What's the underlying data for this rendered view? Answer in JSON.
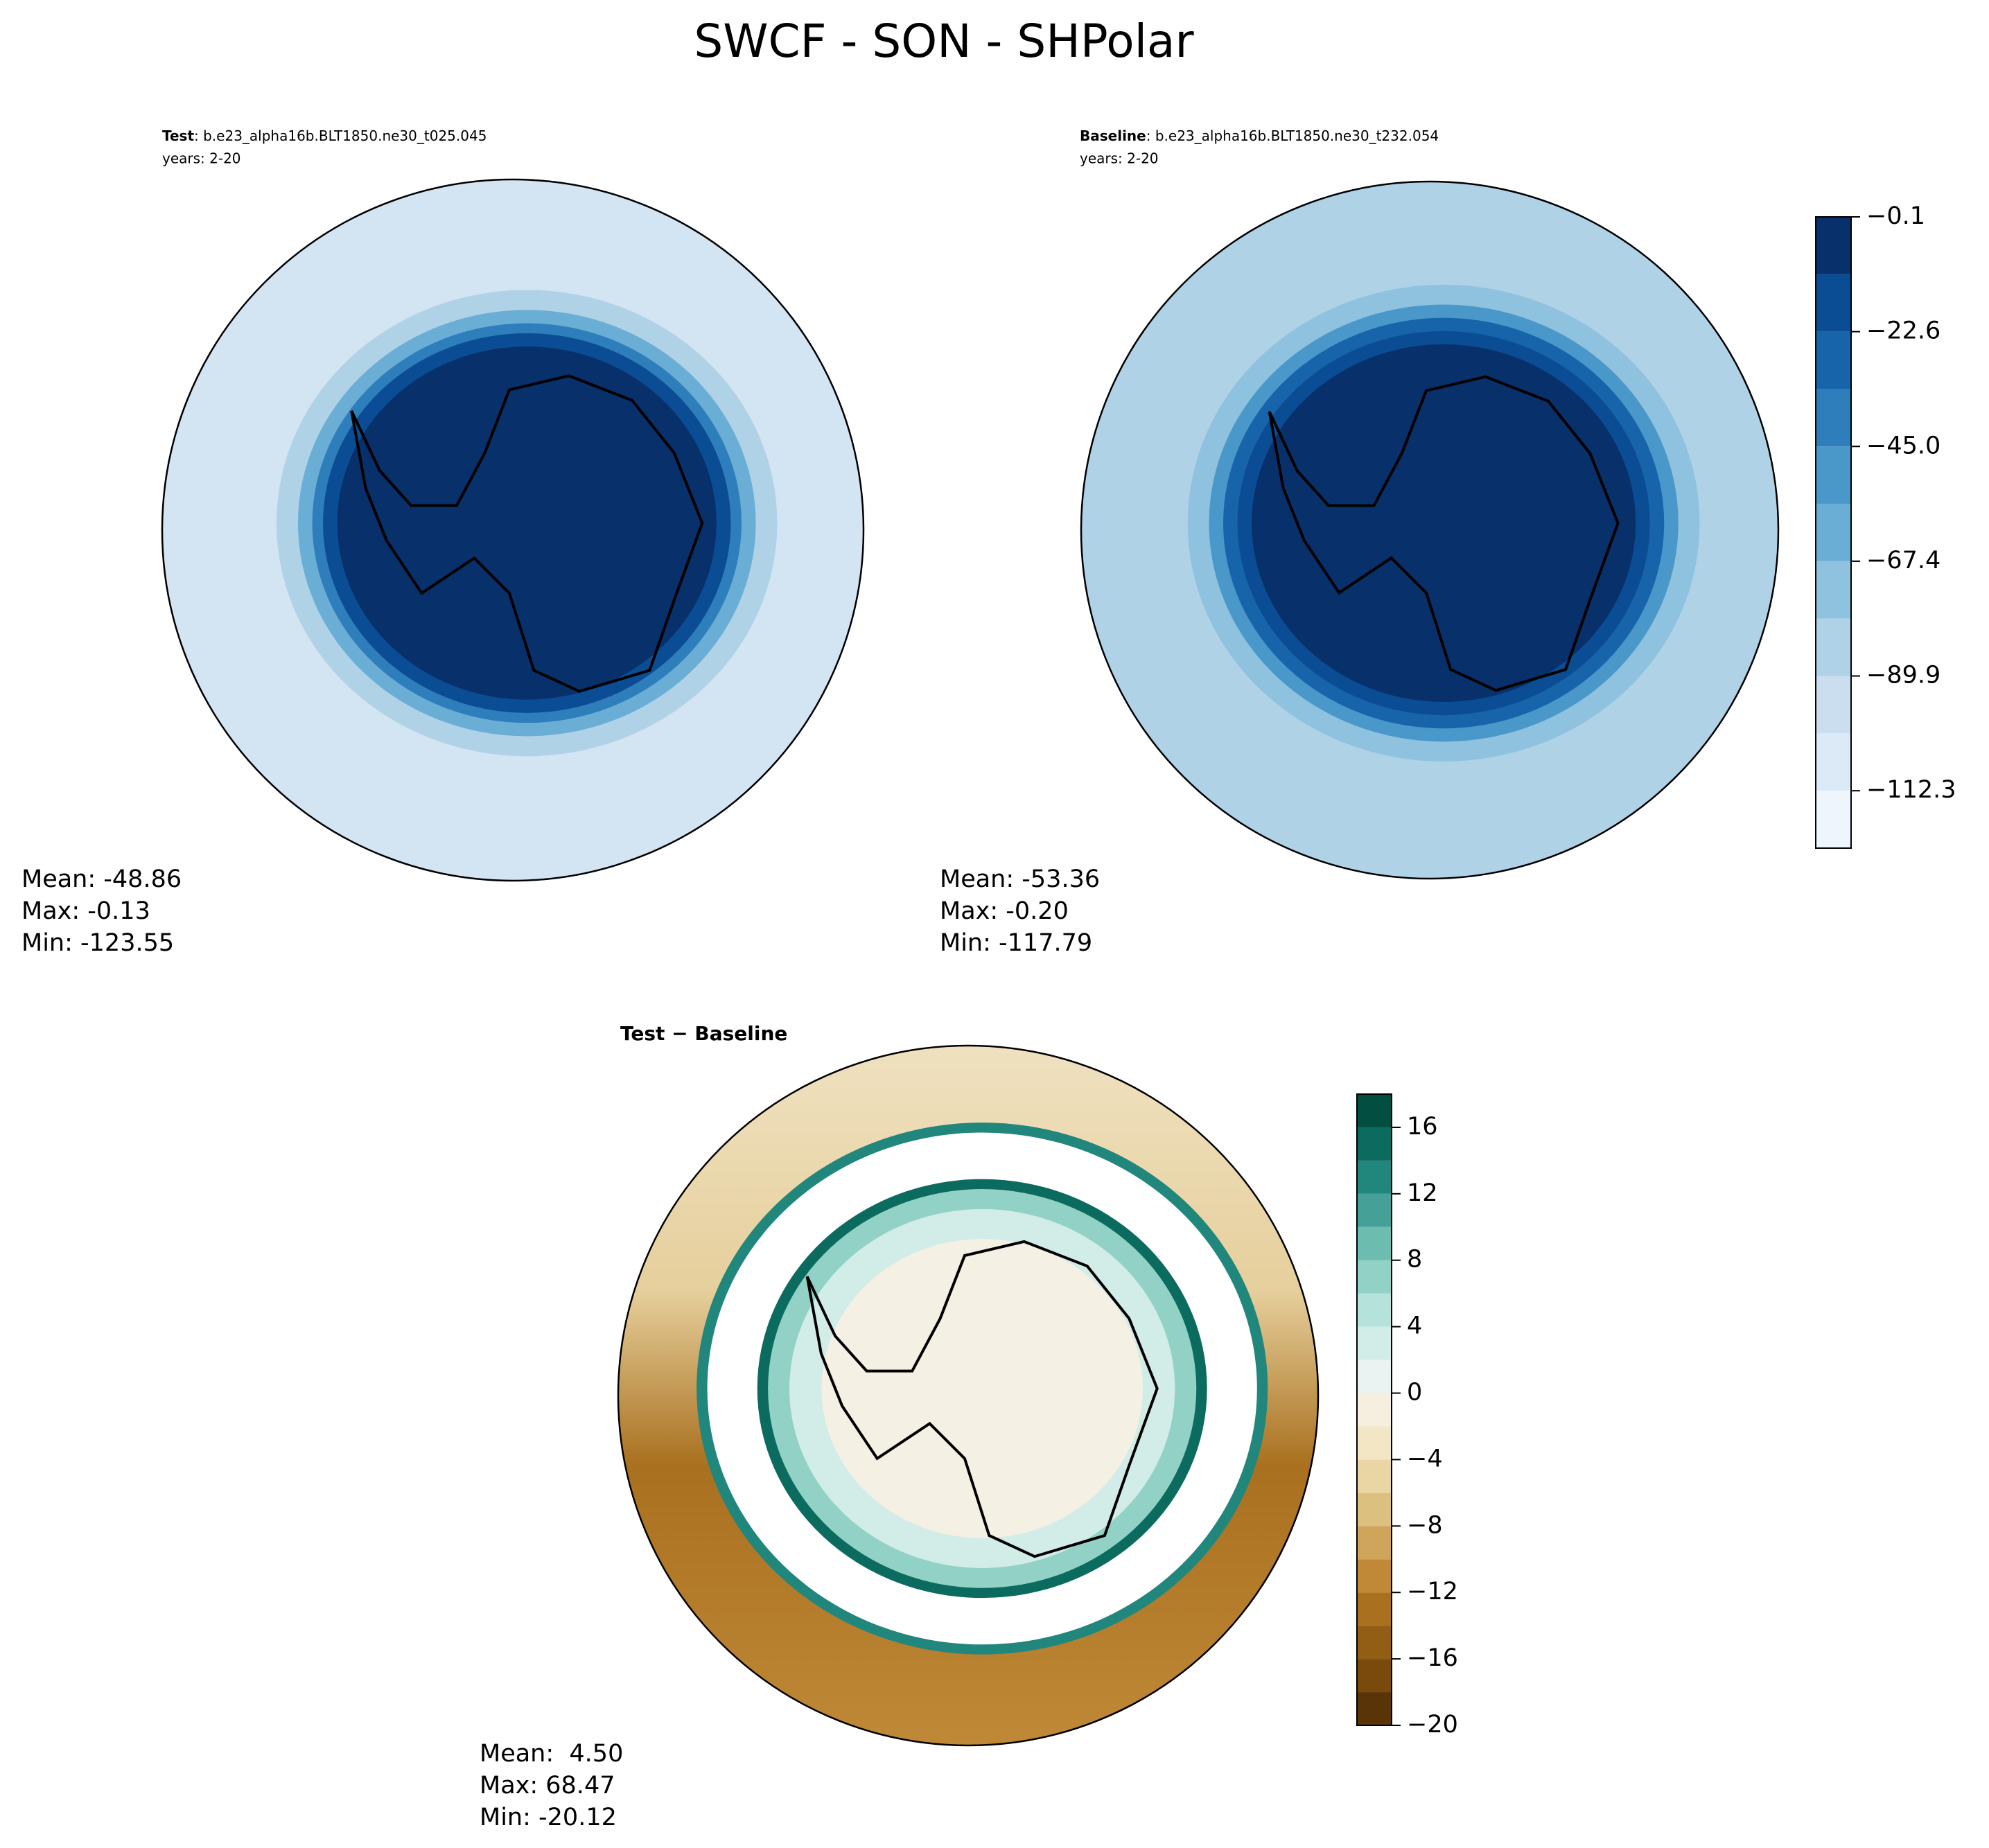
{
  "suptitle": "SWCF - SON - SHPolar",
  "chart_data": [
    {
      "type": "map",
      "name": "Test",
      "case": ": b.e23_alpha16b.BLT1850.ne30_t025.045",
      "years": "years: 2-20",
      "stats": [
        "Mean: -48.86",
        "Max: -0.13",
        "Min: -123.55"
      ]
    },
    {
      "type": "map",
      "name": "Baseline",
      "case": ": b.e23_alpha16b.BLT1850.ne30_t232.054",
      "years": "years: 2-20",
      "stats": [
        "Mean: -53.36",
        "Max: -0.20",
        "Min: -117.79"
      ],
      "colorbar": {
        "ylim": [
          -123.55,
          -0.13
        ],
        "levels": [
          -123.55,
          -112.33,
          -101.11,
          -89.89,
          -78.67,
          -67.45,
          -56.23,
          -45.01,
          -33.79,
          -22.57,
          -11.35,
          -0.13
        ],
        "colors": [
          "#eff5fc",
          "#dce9f6",
          "#cadef0",
          "#b0d2e7",
          "#8fc2de",
          "#6aaed6",
          "#4a98c9",
          "#2e7ebc",
          "#1764ab",
          "#0b4d94",
          "#08306b"
        ],
        "yticks": [
          {
            "value": -0.13,
            "label": "−0.1"
          },
          {
            "value": -22.57,
            "label": "−22.6"
          },
          {
            "value": -45.01,
            "label": "−45.0"
          },
          {
            "value": -67.45,
            "label": "−67.4"
          },
          {
            "value": -89.89,
            "label": "−89.9"
          },
          {
            "value": -112.33,
            "label": "−112.3"
          }
        ]
      }
    },
    {
      "type": "map",
      "name": "Test − Baseline",
      "stats": [
        "Mean:  4.50",
        "Max: 68.47",
        "Min: -20.12"
      ],
      "colorbar": {
        "ylim": [
          -20,
          18
        ],
        "levels": [
          -20,
          -18,
          -16,
          -14,
          -12,
          -10,
          -8,
          -6,
          -4,
          -2,
          0,
          2,
          4,
          6,
          8,
          10,
          12,
          14,
          16,
          18
        ],
        "colors": [
          "#583407",
          "#7a4a0c",
          "#925d14",
          "#a9701f",
          "#bf8937",
          "#cfa55b",
          "#dcc080",
          "#e9d6a4",
          "#f3e6c4",
          "#f6efe0",
          "#eaf3f1",
          "#d2ece8",
          "#b5e2da",
          "#92d1c5",
          "#6cbcb0",
          "#45a197",
          "#21867c",
          "#0b6b5f",
          "#024f41"
        ],
        "yticks": [
          {
            "value": -20,
            "label": "−20"
          },
          {
            "value": -16,
            "label": "−16"
          },
          {
            "value": -12,
            "label": "−12"
          },
          {
            "value": -8,
            "label": "−8"
          },
          {
            "value": -4,
            "label": "−4"
          },
          0,
          4,
          8,
          12,
          16
        ]
      }
    }
  ]
}
